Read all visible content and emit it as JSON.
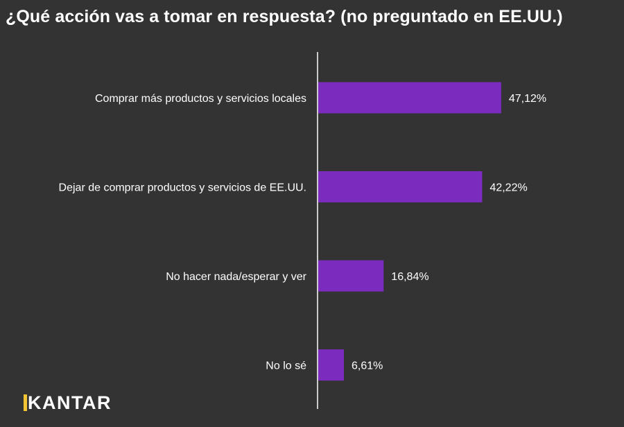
{
  "chart_data": {
    "type": "bar",
    "orientation": "horizontal",
    "title": "¿Qué acción vas a tomar en respuesta? (no preguntado en EE.UU.)",
    "categories": [
      "Comprar más productos y servicios locales",
      "Dejar de comprar productos y servicios de EE.UU.",
      "No hacer nada/esperar y ver",
      "No lo sé"
    ],
    "values": [
      47.12,
      42.22,
      16.84,
      6.61
    ],
    "value_labels": [
      "47,12%",
      "42,22%",
      "16,84%",
      "6,61%"
    ],
    "xlim": [
      0,
      100
    ],
    "bar_color": "#7b2cbf",
    "background_color": "#333333"
  },
  "brand": {
    "logo_text": "KANTAR",
    "accent_color": "#f2c433"
  }
}
